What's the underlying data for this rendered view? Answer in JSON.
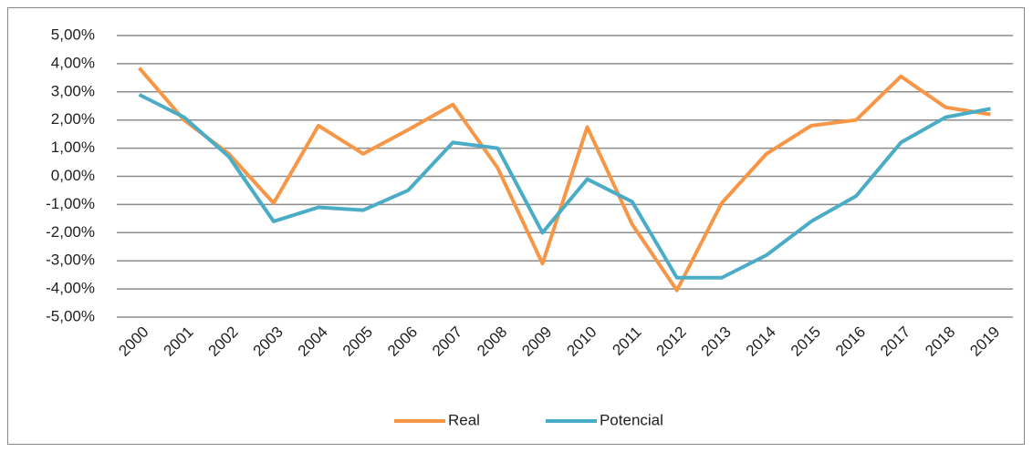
{
  "chart_data": {
    "type": "line",
    "categories": [
      "2000",
      "2001",
      "2002",
      "2003",
      "2004",
      "2005",
      "2006",
      "2007",
      "2008",
      "2009",
      "2010",
      "2011",
      "2012",
      "2013",
      "2014",
      "2015",
      "2016",
      "2017",
      "2018",
      "2019"
    ],
    "series": [
      {
        "name": "Real",
        "color": "#f79646",
        "values": [
          3.85,
          2.0,
          0.8,
          -0.95,
          1.8,
          0.8,
          1.65,
          2.55,
          0.3,
          -3.1,
          1.75,
          -1.7,
          -4.05,
          -0.95,
          0.8,
          1.8,
          2.0,
          3.55,
          2.45,
          2.2
        ]
      },
      {
        "name": "Potencial",
        "color": "#4bacc6",
        "values": [
          2.9,
          2.1,
          0.7,
          -1.6,
          -1.1,
          -1.2,
          -0.5,
          1.2,
          1.0,
          -2.0,
          -0.1,
          -0.9,
          -3.6,
          -3.6,
          -2.8,
          -1.6,
          -0.7,
          1.2,
          2.1,
          2.4
        ]
      }
    ],
    "ylim": [
      -5,
      5
    ],
    "yticks": [
      {
        "value": 5,
        "label": "5,00%"
      },
      {
        "value": 4,
        "label": "4,00%"
      },
      {
        "value": 3,
        "label": "3,00%"
      },
      {
        "value": 2,
        "label": "2,00%"
      },
      {
        "value": 1,
        "label": "1,00%"
      },
      {
        "value": 0,
        "label": "0,00%"
      },
      {
        "value": -1,
        "label": "-1,00%"
      },
      {
        "value": -2,
        "label": "-2,00%"
      },
      {
        "value": -3,
        "label": "-3,00%"
      },
      {
        "value": -4,
        "label": "-4,00%"
      },
      {
        "value": -5,
        "label": "-5,00%"
      }
    ],
    "grid": true,
    "legend": "bottom"
  }
}
